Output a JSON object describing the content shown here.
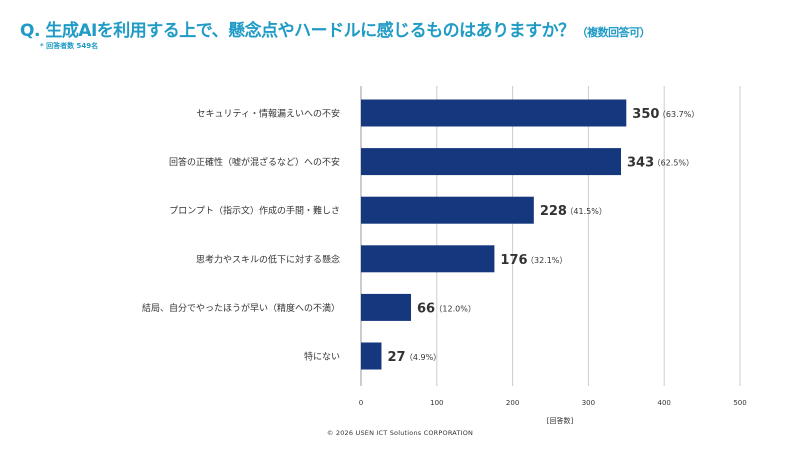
{
  "header": {
    "title": "Q. 生成AIを利用する上で、懸念点やハードルに感じるものはありますか？",
    "title_suffix": "（複数回答可）",
    "respondents": "* 回答者数 549名"
  },
  "footer": {
    "copyright": "© 2026 USEN ICT Solutions CORPORATION"
  },
  "colors": {
    "accent": "#1f9bc6",
    "bar": "#14377d",
    "grid": "#cccccc",
    "text": "#333333"
  },
  "chart_data": {
    "type": "bar",
    "orientation": "horizontal",
    "categories": [
      "セキュリティ・情報漏えいへの不安",
      "回答の正確性（嘘が混ざるなど）への不安",
      "プロンプト（指示文）作成の手間・難しさ",
      "思考力やスキルの低下に対する懸念",
      "結局、自分でやったほうが早い（精度への不満）",
      "特にない"
    ],
    "values": [
      350,
      343,
      228,
      176,
      66,
      27
    ],
    "percent_labels": [
      "（63.7%）",
      "（62.5%）",
      "（41.5%）",
      "（32.1%）",
      "（12.0%）",
      "（4.9%）"
    ],
    "xlim": [
      0,
      500
    ],
    "xticks": [
      0,
      100,
      200,
      300,
      400,
      500
    ],
    "xlabel": "[回答数]",
    "grid": true
  }
}
